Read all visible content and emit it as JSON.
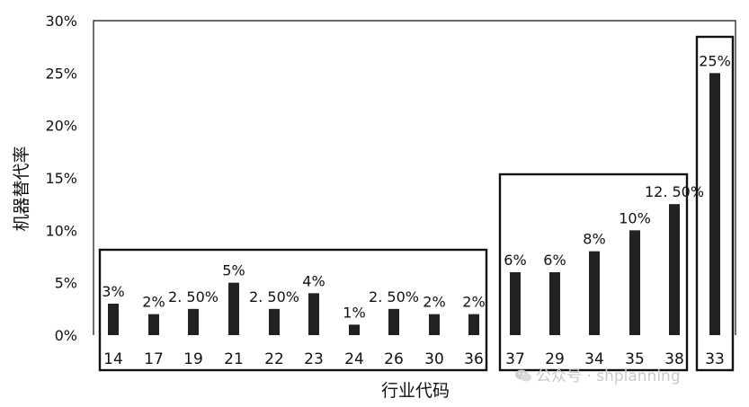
{
  "chart_data": {
    "type": "bar",
    "categories": [
      "14",
      "17",
      "19",
      "21",
      "22",
      "23",
      "24",
      "26",
      "30",
      "36",
      "37",
      "29",
      "34",
      "35",
      "38",
      "33"
    ],
    "values": [
      3,
      2,
      2.5,
      5,
      2.5,
      4,
      1,
      2.5,
      2,
      2,
      6,
      6,
      8,
      10,
      12.5,
      25
    ],
    "data_labels": [
      "3%",
      "2%",
      "2. 50%",
      "5%",
      "2. 50%",
      "4%",
      "1%",
      "2. 50%",
      "2%",
      "2%",
      "6%",
      "6%",
      "8%",
      "10%",
      "12. 50%",
      "25%"
    ],
    "yticks": [
      "0%",
      "5%",
      "10%",
      "15%",
      "20%",
      "25%",
      "30%"
    ],
    "ylim": [
      0,
      30
    ],
    "ylabel": "机器替代率",
    "xlabel": "行业代码",
    "grid": false,
    "bar_color": "#222222",
    "groups": [
      {
        "name": "group-1",
        "categories": [
          "14",
          "17",
          "19",
          "21",
          "22",
          "23",
          "24",
          "26",
          "30",
          "36"
        ]
      },
      {
        "name": "group-2",
        "categories": [
          "37",
          "29",
          "34",
          "35",
          "38"
        ]
      },
      {
        "name": "group-3",
        "categories": [
          "33"
        ]
      }
    ]
  },
  "watermark": {
    "text": "公众号 · shplanning",
    "icon": "wechat-icon",
    "color": "#c9c9c9"
  }
}
